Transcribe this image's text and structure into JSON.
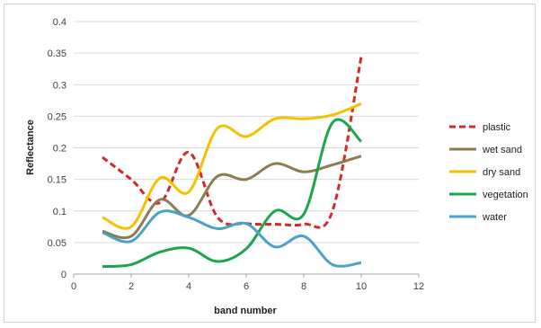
{
  "chart_data": {
    "type": "line",
    "title": "",
    "xlabel": "band number",
    "ylabel": "Reflectance",
    "xlim": [
      0,
      12
    ],
    "ylim": [
      0,
      0.4
    ],
    "xticks": [
      0,
      2,
      4,
      6,
      8,
      10,
      12
    ],
    "yticks": [
      0,
      0.05,
      0.1,
      0.15,
      0.2,
      0.25,
      0.3,
      0.35,
      0.4
    ],
    "xtick_labels": [
      "0",
      "2",
      "4",
      "6",
      "8",
      "10",
      "12"
    ],
    "ytick_labels": [
      "0",
      "0.05",
      "0.1",
      "0.15",
      "0.2",
      "0.25",
      "0.3",
      "0.35",
      "0.4"
    ],
    "grid": "horizontal",
    "legend": "right",
    "x": [
      1,
      2,
      3,
      4,
      5,
      6,
      7,
      8,
      9,
      10
    ],
    "series": [
      {
        "name": "plastic",
        "color": "#d62828",
        "dashed": true,
        "values": [
          0.185,
          0.15,
          0.113,
          0.193,
          0.09,
          0.08,
          0.079,
          0.079,
          0.1,
          0.345
        ]
      },
      {
        "name": "wet sand",
        "color": "#8b7d4f",
        "dashed": false,
        "values": [
          0.068,
          0.06,
          0.118,
          0.093,
          0.155,
          0.15,
          0.175,
          0.162,
          0.173,
          0.187
        ]
      },
      {
        "name": "dry sand",
        "color": "#f5c000",
        "dashed": false,
        "values": [
          0.09,
          0.075,
          0.152,
          0.13,
          0.231,
          0.218,
          0.246,
          0.246,
          0.252,
          0.27
        ]
      },
      {
        "name": "vegetation",
        "color": "#1aa64a",
        "dashed": false,
        "values": [
          0.012,
          0.015,
          0.035,
          0.041,
          0.02,
          0.04,
          0.1,
          0.095,
          0.24,
          0.21
        ]
      },
      {
        "name": "water",
        "color": "#4aa3c7",
        "dashed": false,
        "values": [
          0.066,
          0.052,
          0.098,
          0.09,
          0.072,
          0.08,
          0.043,
          0.06,
          0.015,
          0.018
        ]
      }
    ]
  }
}
